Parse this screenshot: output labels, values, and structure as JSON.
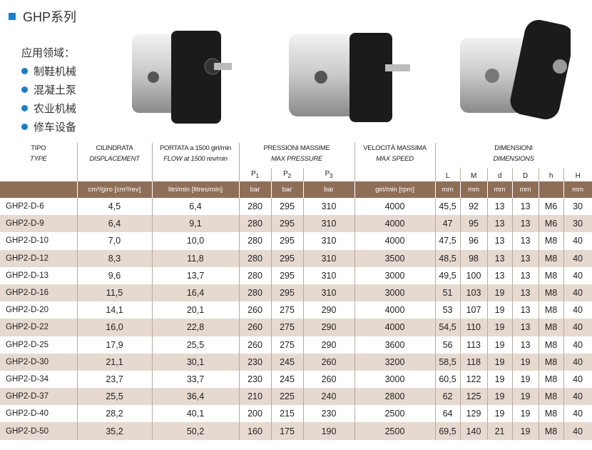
{
  "header": {
    "title": "GHP系列",
    "applications_title": "应用领域：",
    "applications": [
      "制鞋机械",
      "混凝土泵",
      "农业机械",
      "修车设备"
    ]
  },
  "table": {
    "columns": [
      {
        "name": "TIPO",
        "name_en": "TYPE"
      },
      {
        "name": "CILINDRATA",
        "name_en": "DISPLACEMENT"
      },
      {
        "name": "PORTATA a 1500 giri/min",
        "name_en": "FLOW at 1500 rev/min"
      },
      {
        "name": "PRESSIONI MASSIME",
        "name_en": "MAX PRESSURE"
      },
      {
        "name": "VELOCITÀ MASSIMA",
        "name_en": "MAX SPEED"
      },
      {
        "name": "DIMENSIONI",
        "name_en": "DIMENSIONS"
      }
    ],
    "pressures": [
      {
        "symbol": "P",
        "index": "1"
      },
      {
        "symbol": "P",
        "index": "2"
      },
      {
        "symbol": "P",
        "index": "3"
      }
    ],
    "dimensions": [
      "L",
      "M",
      "d",
      "D",
      "h",
      "H"
    ],
    "units": [
      "cm³/giro [cm³/rev]",
      "litri/min [litres/min]",
      "bar",
      "bar",
      "bar",
      "giri/min [rpm]",
      "mm",
      "mm",
      "mm",
      "mm",
      null,
      "mm"
    ],
    "rows": [
      [
        "GHP2-D-6",
        "4,5",
        "6,4",
        "280",
        "295",
        "310",
        "4000",
        "45,5",
        "92",
        "13",
        "13",
        "M6",
        "30"
      ],
      [
        "GHP2-D-9",
        "6,4",
        "9,1",
        "280",
        "295",
        "310",
        "4000",
        "47",
        "95",
        "13",
        "13",
        "M6",
        "30"
      ],
      [
        "GHP2-D-10",
        "7,0",
        "10,0",
        "280",
        "295",
        "310",
        "4000",
        "47,5",
        "96",
        "13",
        "13",
        "M8",
        "40"
      ],
      [
        "GHP2-D-12",
        "8,3",
        "11,8",
        "280",
        "295",
        "310",
        "3500",
        "48,5",
        "98",
        "13",
        "13",
        "M8",
        "40"
      ],
      [
        "GHP2-D-13",
        "9,6",
        "13,7",
        "280",
        "295",
        "310",
        "3000",
        "49,5",
        "100",
        "13",
        "13",
        "M8",
        "40"
      ],
      [
        "GHP2-D-16",
        "11,5",
        "16,4",
        "280",
        "295",
        "310",
        "3000",
        "51",
        "103",
        "19",
        "13",
        "M8",
        "40"
      ],
      [
        "GHP2-D-20",
        "14,1",
        "20,1",
        "260",
        "275",
        "290",
        "4000",
        "53",
        "107",
        "19",
        "13",
        "M8",
        "40"
      ],
      [
        "GHP2-D-22",
        "16,0",
        "22,8",
        "260",
        "275",
        "290",
        "4000",
        "54,5",
        "110",
        "19",
        "13",
        "M8",
        "40"
      ],
      [
        "GHP2-D-25",
        "17,9",
        "25,5",
        "260",
        "275",
        "290",
        "3600",
        "56",
        "113",
        "19",
        "13",
        "M8",
        "40"
      ],
      [
        "GHP2-D-30",
        "21,1",
        "30,1",
        "230",
        "245",
        "260",
        "3200",
        "58,5",
        "118",
        "19",
        "19",
        "M8",
        "40"
      ],
      [
        "GHP2-D-34",
        "23,7",
        "33,7",
        "230",
        "245",
        "260",
        "3000",
        "60,5",
        "122",
        "19",
        "19",
        "M8",
        "40"
      ],
      [
        "GHP2-D-37",
        "25,5",
        "36,4",
        "210",
        "225",
        "240",
        "2800",
        "62",
        "125",
        "19",
        "19",
        "M8",
        "40"
      ],
      [
        "GHP2-D-40",
        "28,2",
        "40,1",
        "200",
        "215",
        "230",
        "2500",
        "64",
        "129",
        "19",
        "19",
        "M8",
        "40"
      ],
      [
        "GHP2-D-50",
        "35,2",
        "50,2",
        "160",
        "175",
        "190",
        "2500",
        "69,5",
        "140",
        "21",
        "19",
        "M8",
        "40"
      ]
    ]
  }
}
